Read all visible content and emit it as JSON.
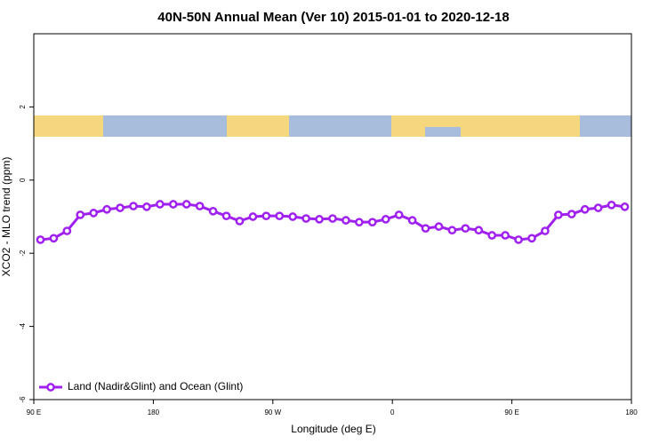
{
  "chart_data": {
    "type": "line",
    "title": "40N-50N Annual Mean (Ver 10)   2015-01-01 to 2020-12-18",
    "xlabel": "Longitude (deg E)",
    "ylabel": "XCO2 - MLO trend (ppm)",
    "x": [
      95,
      105,
      115,
      125,
      135,
      145,
      155,
      165,
      175,
      185,
      195,
      205,
      215,
      225,
      235,
      245,
      255,
      265,
      275,
      285,
      295,
      305,
      315,
      325,
      335,
      345,
      355,
      365,
      375,
      385,
      395,
      405,
      415,
      425,
      435,
      445,
      455,
      465,
      475,
      485,
      495,
      505,
      515,
      525,
      535
    ],
    "series": [
      {
        "name": "Land (Nadir&Glint) and Ocean (Glint)",
        "color": "#a020f0",
        "values": [
          -1.63,
          -1.59,
          -1.39,
          -0.95,
          -0.9,
          -0.8,
          -0.76,
          -0.71,
          -0.73,
          -0.66,
          -0.66,
          -0.66,
          -0.71,
          -0.85,
          -0.98,
          -1.12,
          -1.0,
          -0.98,
          -0.98,
          -1.0,
          -1.05,
          -1.07,
          -1.05,
          -1.1,
          -1.15,
          -1.15,
          -1.07,
          -0.95,
          -1.1,
          -1.32,
          -1.27,
          -1.37,
          -1.32,
          -1.37,
          -1.51,
          -1.51,
          -1.63,
          -1.59,
          -1.39,
          -0.95,
          -0.93,
          -0.8,
          -0.76,
          -0.68,
          -0.73
        ]
      }
    ],
    "xlim": [
      90,
      540
    ],
    "xticks": [
      {
        "value": 90,
        "label": "90 E"
      },
      {
        "value": 180,
        "label": "180"
      },
      {
        "value": 270,
        "label": "90 W"
      },
      {
        "value": 360,
        "label": "0"
      },
      {
        "value": 450,
        "label": "90 E"
      },
      {
        "value": 540,
        "label": "180"
      }
    ],
    "ylim": [
      -6,
      4
    ],
    "yticks": [
      2,
      0,
      -2,
      -4,
      -6
    ],
    "legend": "bottom-left"
  }
}
